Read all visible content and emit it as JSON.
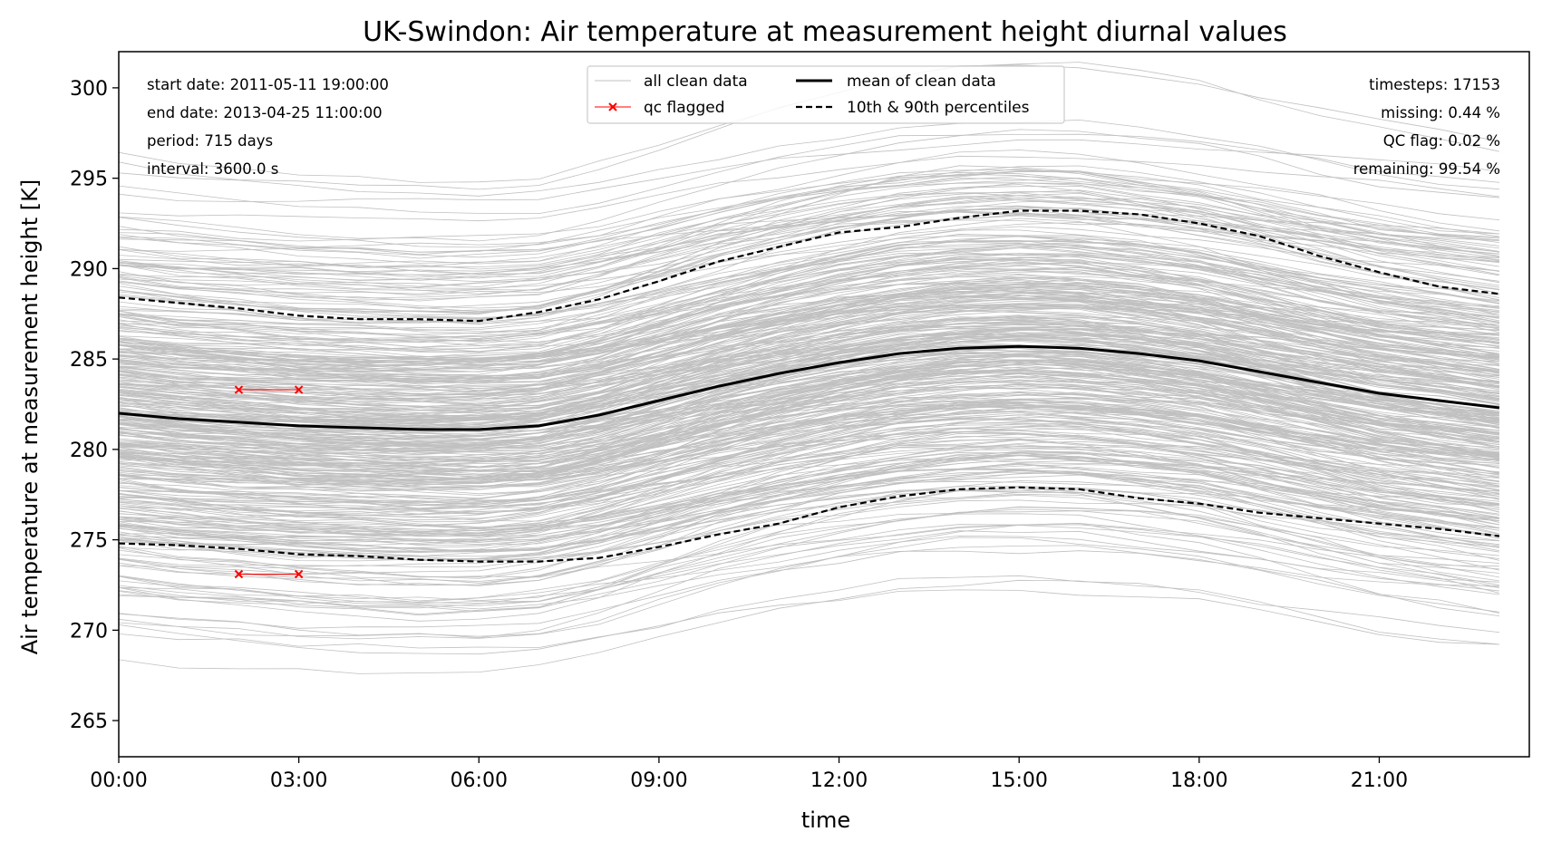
{
  "chart_data": {
    "type": "line",
    "title": "UK-Swindon: Air temperature at measurement height diurnal values",
    "xlabel": "time",
    "ylabel": "Air temperature at measurement height [K]",
    "xlim": [
      0,
      23.5
    ],
    "ylim": [
      263,
      302
    ],
    "x_ticks": [
      0,
      3,
      6,
      9,
      12,
      15,
      18,
      21
    ],
    "x_tick_labels": [
      "00:00",
      "03:00",
      "06:00",
      "09:00",
      "12:00",
      "15:00",
      "18:00",
      "21:00"
    ],
    "y_ticks": [
      265,
      270,
      275,
      280,
      285,
      290,
      295,
      300
    ],
    "x": [
      0,
      1,
      2,
      3,
      4,
      5,
      6,
      7,
      8,
      9,
      10,
      11,
      12,
      13,
      14,
      15,
      16,
      17,
      18,
      19,
      20,
      21,
      22,
      23
    ],
    "series": [
      {
        "name": "mean of clean data",
        "style": "solid",
        "color": "#000000",
        "values": [
          282.0,
          281.7,
          281.5,
          281.3,
          281.2,
          281.1,
          281.1,
          281.3,
          281.9,
          282.7,
          283.5,
          284.2,
          284.8,
          285.3,
          285.6,
          285.7,
          285.6,
          285.3,
          284.9,
          284.3,
          283.7,
          283.1,
          282.7,
          282.3
        ]
      },
      {
        "name": "10th & 90th percentiles",
        "style": "dashed",
        "color": "#000000",
        "values": [
          288.4,
          288.1,
          287.8,
          287.4,
          287.2,
          287.2,
          287.1,
          287.6,
          288.3,
          289.3,
          290.4,
          291.2,
          292.0,
          292.3,
          292.8,
          293.2,
          293.2,
          293.0,
          292.5,
          291.8,
          290.7,
          289.8,
          289.0,
          288.6
        ]
      },
      {
        "name": "10th & 90th percentiles",
        "style": "dashed",
        "color": "#000000",
        "values": [
          274.8,
          274.7,
          274.5,
          274.2,
          274.1,
          273.9,
          273.8,
          273.8,
          274.0,
          274.6,
          275.3,
          275.9,
          276.8,
          277.4,
          277.8,
          277.9,
          277.8,
          277.3,
          277.0,
          276.5,
          276.2,
          275.9,
          275.6,
          275.2
        ]
      },
      {
        "name": "qc flagged",
        "style": "marker-x",
        "color": "#ff0000",
        "points": [
          [
            2,
            283.3
          ],
          [
            3,
            283.3
          ],
          [
            2,
            273.1
          ],
          [
            3,
            273.1
          ]
        ]
      }
    ],
    "background_series": {
      "name": "all clean data",
      "color": "#c0c0c0",
      "count": 715,
      "center": 283.5,
      "spread_upper": 7.5,
      "spread_lower": 7.0
    },
    "legend": {
      "position": "top-center",
      "entries": [
        "all clean data",
        "qc flagged",
        "mean of clean data",
        "10th & 90th percentiles"
      ]
    },
    "info_left": [
      "start date: 2011-05-11 19:00:00",
      "end date: 2013-04-25 11:00:00",
      "period: 715 days",
      "interval: 3600.0 s"
    ],
    "info_right": [
      "timesteps: 17153",
      "missing: 0.44 %",
      "QC flag: 0.02 %",
      "remaining: 99.54 %"
    ],
    "grid": false
  }
}
